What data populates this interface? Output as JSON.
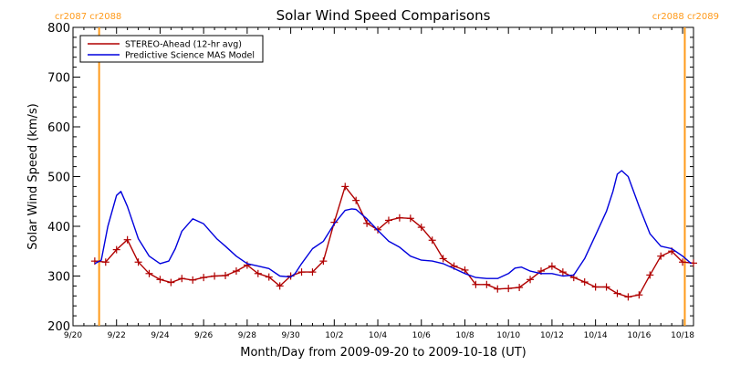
{
  "chart_data": {
    "type": "line",
    "title": "Solar Wind Speed Comparisons",
    "xlabel": "Month/Day from 2009-09-20 to 2009-10-18 (UT)",
    "ylabel": "Solar Wind Speed (km/s)",
    "xlim_days": [
      0,
      28.5
    ],
    "ylim": [
      200,
      800
    ],
    "x_ticks": [
      {
        "day": 0,
        "label": "9/20"
      },
      {
        "day": 2,
        "label": "9/22"
      },
      {
        "day": 4,
        "label": "9/24"
      },
      {
        "day": 6,
        "label": "9/26"
      },
      {
        "day": 8,
        "label": "9/28"
      },
      {
        "day": 10,
        "label": "9/30"
      },
      {
        "day": 12,
        "label": "10/2"
      },
      {
        "day": 14,
        "label": "10/4"
      },
      {
        "day": 16,
        "label": "10/6"
      },
      {
        "day": 18,
        "label": "10/8"
      },
      {
        "day": 20,
        "label": "10/10"
      },
      {
        "day": 22,
        "label": "10/12"
      },
      {
        "day": 24,
        "label": "10/14"
      },
      {
        "day": 26,
        "label": "10/16"
      },
      {
        "day": 28,
        "label": "10/18"
      }
    ],
    "y_ticks": [
      200,
      300,
      400,
      500,
      600,
      700,
      800
    ],
    "legend": {
      "placement": "top-left"
    },
    "rotation_markers": [
      {
        "day": 1.2,
        "labels": [
          "cr2087",
          "cr2088"
        ],
        "color": "#ff9a1a"
      },
      {
        "day": 28.1,
        "labels": [
          "cr2088",
          "cr2089"
        ],
        "color": "#ff9a1a"
      }
    ],
    "series": [
      {
        "name": "STEREO-Ahead (12-hr avg)",
        "color": "#b00000",
        "markers": true,
        "x": [
          1.0,
          1.5,
          2.0,
          2.5,
          3.0,
          3.5,
          4.0,
          4.5,
          5.0,
          5.5,
          6.0,
          6.5,
          7.0,
          7.5,
          8.0,
          8.5,
          9.0,
          9.5,
          10.0,
          10.5,
          11.0,
          11.5,
          12.0,
          12.5,
          13.0,
          13.5,
          14.0,
          14.5,
          15.0,
          15.5,
          16.0,
          16.5,
          17.0,
          17.5,
          18.0,
          18.5,
          19.0,
          19.5,
          20.0,
          20.5,
          21.0,
          21.5,
          22.0,
          22.5,
          23.0,
          23.5,
          24.0,
          24.5,
          25.0,
          25.5,
          26.0,
          26.5,
          27.0,
          27.5,
          28.0,
          28.5
        ],
        "values": [
          330,
          328,
          353,
          373,
          328,
          305,
          293,
          287,
          295,
          292,
          297,
          300,
          301,
          310,
          322,
          305,
          298,
          280,
          300,
          308,
          308,
          330,
          408,
          480,
          452,
          406,
          393,
          412,
          417,
          416,
          398,
          372,
          335,
          320,
          312,
          283,
          283,
          274,
          275,
          277,
          293,
          310,
          320,
          308,
          297,
          288,
          278,
          278,
          265,
          258,
          262,
          302,
          340,
          350,
          328,
          326
        ]
      },
      {
        "name": "Predictive Science MAS Model",
        "color": "#0000dd",
        "markers": false,
        "x": [
          1.0,
          1.3,
          1.6,
          2.0,
          2.2,
          2.5,
          3.0,
          3.5,
          4.0,
          4.4,
          4.7,
          5.0,
          5.5,
          6.0,
          6.3,
          6.6,
          7.0,
          7.5,
          8.0,
          8.5,
          9.0,
          9.5,
          10.0,
          10.2,
          10.5,
          11.0,
          11.5,
          12.0,
          12.5,
          12.8,
          13.0,
          13.5,
          14.0,
          14.5,
          15.0,
          15.5,
          16.0,
          16.5,
          17.0,
          17.5,
          18.0,
          18.5,
          19.0,
          19.5,
          20.0,
          20.3,
          20.6,
          21.0,
          21.5,
          22.0,
          22.5,
          23.0,
          23.5,
          24.0,
          24.5,
          24.8,
          25.0,
          25.2,
          25.5,
          26.0,
          26.5,
          27.0,
          27.5,
          28.0,
          28.4
        ],
        "values": [
          325,
          332,
          400,
          462,
          470,
          440,
          375,
          340,
          325,
          330,
          355,
          390,
          415,
          405,
          390,
          375,
          360,
          340,
          325,
          320,
          315,
          300,
          298,
          305,
          325,
          355,
          370,
          405,
          432,
          435,
          434,
          415,
          392,
          370,
          358,
          340,
          332,
          330,
          325,
          315,
          305,
          297,
          295,
          295,
          305,
          316,
          318,
          310,
          305,
          305,
          300,
          302,
          335,
          382,
          430,
          470,
          505,
          512,
          500,
          440,
          385,
          360,
          355,
          340,
          325
        ]
      }
    ]
  }
}
